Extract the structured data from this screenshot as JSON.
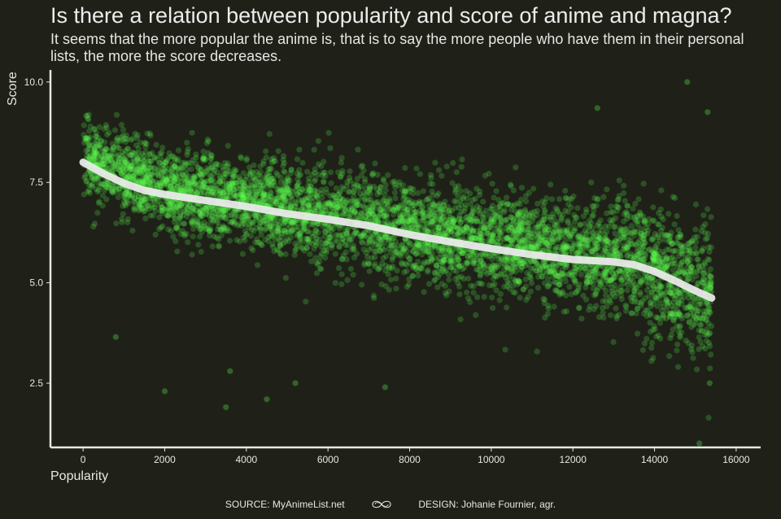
{
  "header": {
    "title": "Is there a relation between popularity and score of anime and magna?",
    "subtitle": "It seems that the more popular the anime is, that is to say the more people who have them in their personal lists, the more the score decreases."
  },
  "footer": {
    "source": "SOURCE: MyAnimeList.net",
    "design": "DESIGN: Johanie Fournier, agr.",
    "separator_icon": "infinity-swirl-icon"
  },
  "colors": {
    "background": "#1f2119",
    "points": "#5dff4f",
    "trend": "#ececec",
    "axis": "#e8e8e2"
  },
  "chart_data": {
    "type": "scatter",
    "title": "Is there a relation between popularity and score of anime and magna?",
    "subtitle": "It seems that the more popular the anime is, that is to say the more people who have them in their personal lists, the more the score decreases.",
    "xlabel": "Popularity",
    "ylabel": "Score",
    "xlim": [
      -800,
      16600
    ],
    "ylim": [
      0.9,
      10.3
    ],
    "xticks": [
      0,
      2000,
      4000,
      6000,
      8000,
      10000,
      12000,
      14000,
      16000
    ],
    "xtick_labels": [
      "0",
      "2000",
      "4000",
      "6000",
      "8000",
      "10000",
      "12000",
      "14000",
      "16000"
    ],
    "yticks": [
      2.5,
      5.0,
      7.5,
      10.0
    ],
    "ytick_labels": [
      "2.5",
      "5.0",
      "7.5",
      "10.0"
    ],
    "grid": false,
    "point_count_estimate": 15000,
    "series": [
      {
        "kind": "points",
        "x_range": [
          0,
          15400
        ],
        "center_line": {
          "x": [
            0,
            2000,
            4000,
            6000,
            8000,
            10000,
            12000,
            13500,
            15400
          ],
          "y": [
            8.0,
            7.2,
            6.9,
            6.55,
            6.2,
            5.85,
            5.6,
            5.4,
            4.6
          ]
        },
        "spread_sd": [
          0.45,
          0.5,
          0.55,
          0.6,
          0.6,
          0.62,
          0.65,
          0.75,
          0.9
        ],
        "outliers": [
          {
            "x": 14800,
            "y": 10.0
          },
          {
            "x": 12600,
            "y": 9.35
          },
          {
            "x": 15300,
            "y": 9.25
          },
          {
            "x": 15100,
            "y": 1.0
          },
          {
            "x": 3500,
            "y": 1.9
          },
          {
            "x": 2000,
            "y": 2.3
          },
          {
            "x": 4500,
            "y": 2.1
          },
          {
            "x": 5200,
            "y": 2.5
          },
          {
            "x": 800,
            "y": 3.65
          },
          {
            "x": 3600,
            "y": 2.8
          },
          {
            "x": 7400,
            "y": 2.4
          },
          {
            "x": 15350,
            "y": 2.5
          }
        ]
      },
      {
        "kind": "trend",
        "x": [
          0,
          500,
          1000,
          1500,
          2000,
          3000,
          4000,
          5000,
          6000,
          7000,
          8000,
          9000,
          10000,
          11000,
          12000,
          13000,
          13500,
          14000,
          14500,
          15000,
          15400
        ],
        "y": [
          8.0,
          7.72,
          7.48,
          7.3,
          7.2,
          7.05,
          6.9,
          6.72,
          6.58,
          6.42,
          6.2,
          6.02,
          5.85,
          5.7,
          5.58,
          5.52,
          5.45,
          5.28,
          5.05,
          4.8,
          4.62
        ]
      }
    ]
  }
}
